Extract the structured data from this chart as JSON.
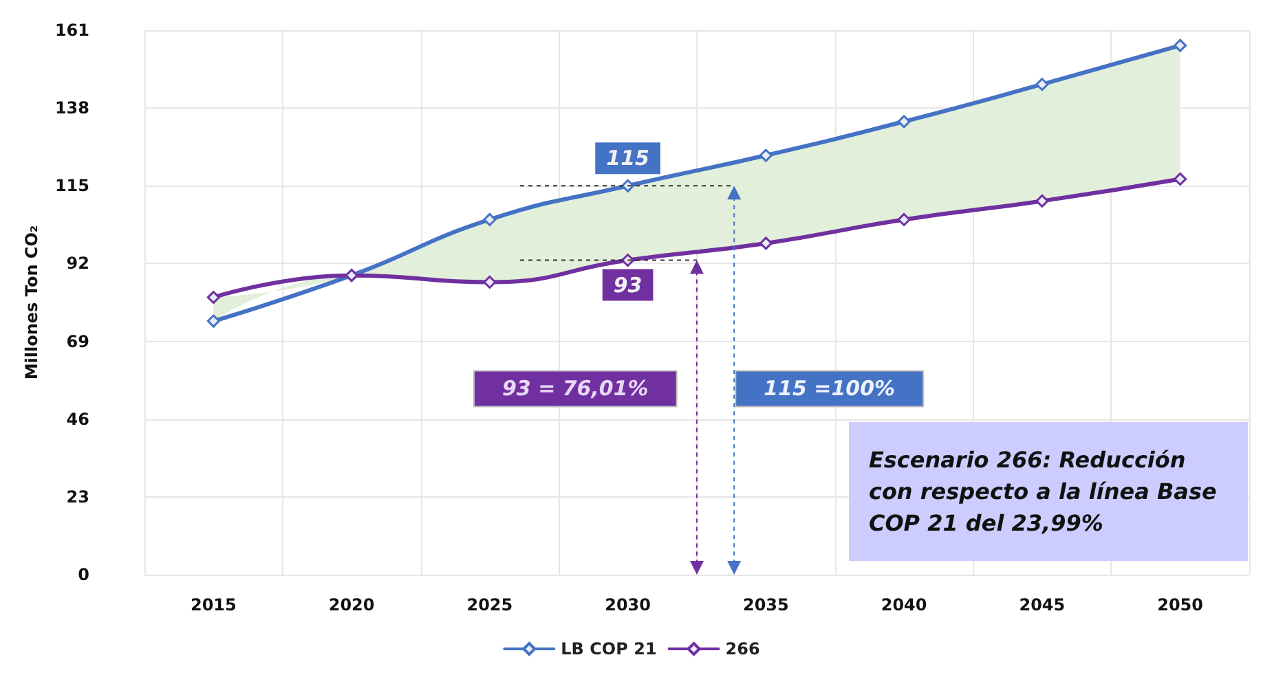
{
  "chart_data": {
    "type": "line",
    "ylabel": "Millones Ton CO₂",
    "categories": [
      "2015",
      "2020",
      "2025",
      "2030",
      "2035",
      "2040",
      "2045",
      "2050"
    ],
    "series": [
      {
        "name": "LB COP 21",
        "color": "#4472c4",
        "values": [
          75,
          88.5,
          105,
          115,
          124,
          134,
          145,
          156.5
        ],
        "lower": [
          82,
          88.5,
          86.5,
          93,
          98,
          105,
          110.5,
          117
        ],
        "upper": [
          75,
          88.5,
          105,
          115,
          124,
          134,
          145,
          156.5
        ]
      },
      {
        "name": "266",
        "color": "#7030a0",
        "values": [
          82,
          88.5,
          86.5,
          93,
          98,
          105,
          110.5,
          117
        ]
      }
    ],
    "ylim": [
      0,
      161
    ],
    "yticks": [
      0,
      23,
      46,
      69,
      92,
      115,
      138,
      161
    ],
    "grid": true,
    "legend": "bottom",
    "marker": "diamond",
    "line_style": "solid",
    "annotations": [
      {
        "text": "115",
        "x": "2030",
        "y": 115
      },
      {
        "text": "93",
        "x": "2030",
        "y": 93
      },
      "93 = 76,01%",
      "115 =100%",
      "Escenario 266: Reducción con respecto a la línea Base COP 21 del 23,99%"
    ]
  }
}
